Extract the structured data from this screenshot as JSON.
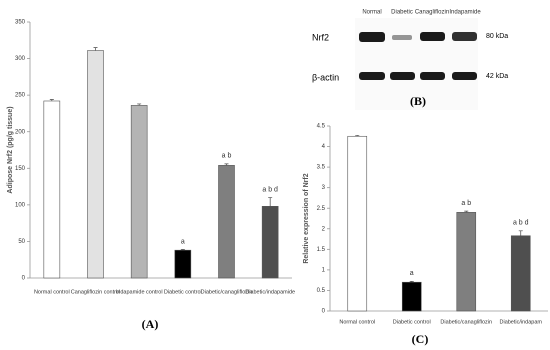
{
  "chart_data": [
    {
      "type": "bar",
      "panel_label": "(A)",
      "y_label": "Adipose Nrf2 (pg/g tissue)",
      "categories": [
        "Normal control",
        "Canagliflozin control",
        "Indapamide control",
        "Diabetic control",
        "Diabetic/canagliflozin",
        "Diabetic/indapamide"
      ],
      "values": [
        242,
        311,
        236,
        38,
        154,
        98
      ],
      "errors": [
        2,
        4,
        2,
        1,
        2,
        12
      ],
      "bar_labels": [
        null,
        null,
        null,
        "a",
        "a b",
        "a b d"
      ],
      "colors": [
        "#ffffff",
        "#e2e2e2",
        "#b4b4b4",
        "#000000",
        "#7f7f7f",
        "#4f4f4f"
      ],
      "ylim": [
        0,
        350
      ],
      "yticks": [
        0,
        50,
        100,
        150,
        200,
        250,
        300,
        350
      ]
    },
    {
      "type": "bar",
      "panel_label": "(C)",
      "y_label": "Relative expression of Nrf2",
      "categories": [
        "Normal control",
        "Diabetic control",
        "Diabetic/canagliflozin",
        "Diabetic/indapam"
      ],
      "values": [
        4.25,
        0.7,
        2.4,
        1.83
      ],
      "errors": [
        0.02,
        0.02,
        0.03,
        0.12
      ],
      "bar_labels": [
        null,
        "a",
        "a b",
        "a b d"
      ],
      "colors": [
        "#ffffff",
        "#000000",
        "#7f7f7f",
        "#4f4f4f"
      ],
      "ylim": [
        0,
        4.5
      ],
      "yticks": [
        0,
        0.5,
        1,
        1.5,
        2,
        2.5,
        3,
        3.5,
        4,
        4.5
      ]
    }
  ],
  "blot": {
    "panel_label": "(B)",
    "lanes": [
      "Normal",
      "Diabetic",
      "Canagliflozin",
      "Indapamide"
    ],
    "rows": [
      {
        "name": "Nrf2",
        "size": "80 kDa"
      },
      {
        "name": "β-actin",
        "size": "42 kDa"
      }
    ]
  }
}
